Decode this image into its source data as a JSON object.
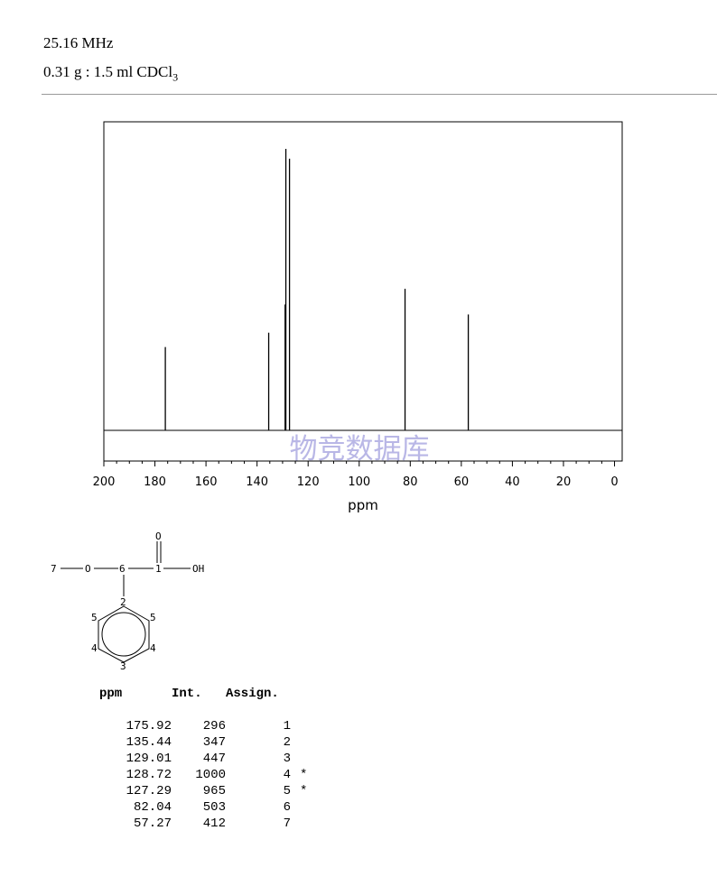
{
  "header": {
    "frequency": "25.16 MHz",
    "sample_prefix": "0.31 g : 1.5 ml CDCl",
    "sample_subscript": "3"
  },
  "watermark": "物竞数据库",
  "structure": {
    "labels": {
      "methyl": "7",
      "ether_o": "O",
      "c6": "6",
      "c1": "1",
      "carbonyl_o": "O",
      "oh": "OH",
      "c2": "2",
      "c5_left": "5",
      "c5_right": "5",
      "c4_left": "4",
      "c4_right": "4",
      "c3": "3"
    }
  },
  "table": {
    "headers": [
      "ppm",
      "Int.",
      "Assign."
    ],
    "rows": [
      {
        "ppm": "175.92",
        "int": "296",
        "assign": "1",
        "mark": ""
      },
      {
        "ppm": "135.44",
        "int": "347",
        "assign": "2",
        "mark": ""
      },
      {
        "ppm": "129.01",
        "int": "447",
        "assign": "3",
        "mark": ""
      },
      {
        "ppm": "128.72",
        "int": "1000",
        "assign": "4",
        "mark": "*"
      },
      {
        "ppm": "127.29",
        "int": "965",
        "assign": "5",
        "mark": "*"
      },
      {
        "ppm": "82.04",
        "int": "503",
        "assign": "6",
        "mark": ""
      },
      {
        "ppm": "57.27",
        "int": "412",
        "assign": "7",
        "mark": ""
      }
    ]
  },
  "chart_data": {
    "type": "line",
    "title": "",
    "xlabel": "ppm",
    "ylabel": "",
    "xlim": [
      200,
      -3
    ],
    "ylim": [
      0,
      1000
    ],
    "x_reversed": true,
    "xticks": [
      200,
      180,
      160,
      140,
      120,
      100,
      80,
      60,
      40,
      20,
      0
    ],
    "peaks": [
      {
        "ppm": 175.92,
        "intensity": 296
      },
      {
        "ppm": 135.44,
        "intensity": 347
      },
      {
        "ppm": 129.01,
        "intensity": 447
      },
      {
        "ppm": 128.72,
        "intensity": 1000
      },
      {
        "ppm": 127.29,
        "intensity": 965
      },
      {
        "ppm": 82.04,
        "intensity": 503
      },
      {
        "ppm": 57.27,
        "intensity": 412
      }
    ],
    "grid": false,
    "legend": "none"
  }
}
